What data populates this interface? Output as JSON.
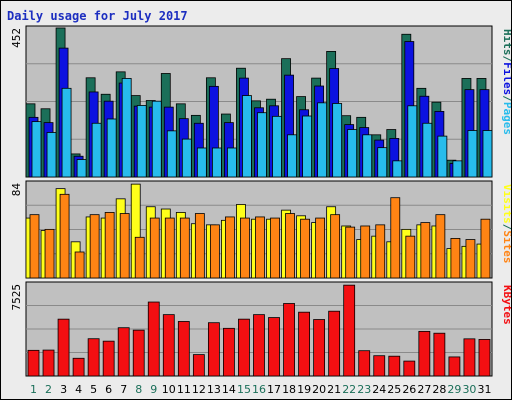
{
  "chart_data": {
    "type": "bar",
    "title": "Daily usage for July 2017",
    "categories": [
      "1",
      "2",
      "3",
      "4",
      "5",
      "6",
      "7",
      "8",
      "9",
      "10",
      "11",
      "12",
      "13",
      "14",
      "15",
      "16",
      "17",
      "18",
      "19",
      "20",
      "21",
      "22",
      "23",
      "24",
      "25",
      "26",
      "27",
      "28",
      "29",
      "30",
      "31"
    ],
    "weekend_days": [
      "1",
      "2",
      "8",
      "9",
      "15",
      "16",
      "22",
      "23",
      "29",
      "30"
    ],
    "colors": {
      "background": "#c0c0c0",
      "hits": "#1b6f59",
      "files": "#0c12e0",
      "pages": "#27bcec",
      "visits": "#ffff1a",
      "sites": "#ff8414",
      "kbytes": "#f30f12",
      "title": "#1c2ec0",
      "weekday_label": "#000000",
      "weekend_label": "#1b6f59"
    },
    "panels": [
      {
        "id": "hits_files_pages",
        "ymax_label": "452",
        "ymax": 452,
        "side_label": [
          "Pages",
          "/",
          "Files",
          "/",
          "Hits"
        ],
        "side_label_colors": [
          "#27bcec",
          "#1b6f59",
          "#0c12e0",
          "#1b6f59",
          "#1b6f59"
        ],
        "series": [
          {
            "name": "Hits",
            "values": [
              222,
              207,
              452,
              70,
              301,
              251,
              319,
              247,
              232,
              314,
              222,
              187,
              301,
              191,
              330,
              231,
              236,
              359,
              244,
              300,
              381,
              186,
              181,
              128,
              144,
              433,
              269,
              227,
              51,
              299,
              299
            ]
          },
          {
            "name": "Files",
            "values": [
              181,
              165,
              391,
              63,
              258,
              230,
              285,
              215,
              212,
              212,
              177,
              163,
              275,
              165,
              300,
              210,
              216,
              309,
              204,
              276,
              329,
              159,
              150,
              112,
              117,
              411,
              245,
              199,
              41,
              265,
              265
            ]
          },
          {
            "name": "Pages",
            "values": [
              168,
              135,
              269,
              53,
              163,
              176,
              299,
              217,
              230,
              140,
              115,
              88,
              88,
              88,
              247,
              195,
              184,
              128,
              185,
              225,
              223,
              144,
              128,
              89,
              49,
              216,
              163,
              124,
              49,
              141,
              141
            ]
          }
        ]
      },
      {
        "id": "visits_sites",
        "ymax_label": "84",
        "ymax": 84,
        "side_label": [
          "Sites",
          "/",
          "Visits"
        ],
        "side_label_colors": [
          "#ff8414",
          "#1b6f59",
          "#ffff1a"
        ],
        "series": [
          {
            "name": "Visits",
            "values": [
              53,
              42,
              79,
              32,
              54,
              53,
              70,
              83,
              63,
              61,
              58,
              48,
              47,
              51,
              65,
              52,
              52,
              60,
              55,
              49,
              63,
              46,
              34,
              37,
              32,
              43,
              47,
              46,
              26,
              28,
              30
            ]
          },
          {
            "name": "Sites",
            "values": [
              56,
              43,
              74,
              23,
              56,
              58,
              57,
              36,
              53,
              53,
              53,
              57,
              47,
              54,
              53,
              54,
              53,
              57,
              52,
              53,
              56,
              45,
              46,
              47,
              71,
              37,
              49,
              56,
              35,
              34,
              52
            ]
          }
        ]
      },
      {
        "id": "kbytes",
        "ymax_label": "7525",
        "ymax": 7525,
        "side_label": [
          "KBytes"
        ],
        "side_label_colors": [
          "#f30f12"
        ],
        "series": [
          {
            "name": "KBytes",
            "values": [
              2100,
              2120,
              4650,
              1450,
              3050,
              2850,
              3950,
              3750,
              6050,
              5020,
              4460,
              1750,
              4360,
              3900,
              4650,
              5020,
              4780,
              5930,
              5220,
              4620,
              5300,
              7430,
              2070,
              1660,
              1620,
              1220,
              3650,
              3500,
              1560,
              3040,
              2990
            ]
          }
        ]
      }
    ]
  }
}
